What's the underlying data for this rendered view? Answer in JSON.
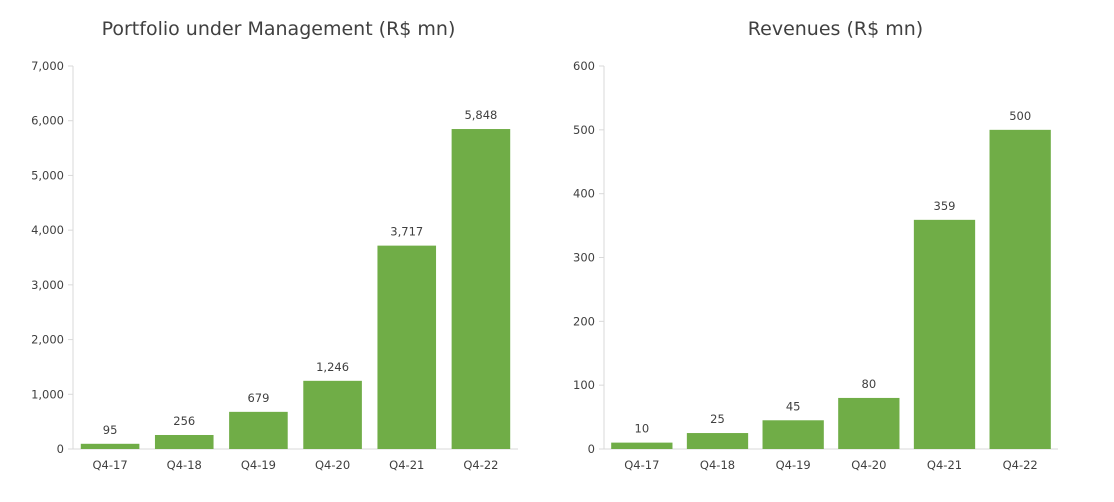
{
  "chart_data": [
    {
      "type": "bar",
      "title": "Portfolio under Management (R$ mn)",
      "categories": [
        "Q4-17",
        "Q4-18",
        "Q4-19",
        "Q4-20",
        "Q4-21",
        "Q4-22"
      ],
      "values": [
        95,
        256,
        679,
        1246,
        3717,
        5848
      ],
      "value_labels": [
        "95",
        "256",
        "679",
        "1,246",
        "3,717",
        "5,848"
      ],
      "ylim": [
        0,
        7000
      ],
      "yticks": [
        0,
        1000,
        2000,
        3000,
        4000,
        5000,
        6000,
        7000
      ],
      "ytick_labels": [
        "0",
        "1,000",
        "2,000",
        "3,000",
        "4,000",
        "5,000",
        "6,000",
        "7,000"
      ],
      "bar_color": "#70AD47",
      "grid": false,
      "xlabel": "",
      "ylabel": ""
    },
    {
      "type": "bar",
      "title": "Revenues (R$ mn)",
      "categories": [
        "Q4-17",
        "Q4-18",
        "Q4-19",
        "Q4-20",
        "Q4-21",
        "Q4-22"
      ],
      "values": [
        10,
        25,
        45,
        80,
        359,
        500
      ],
      "value_labels": [
        "10",
        "25",
        "45",
        "80",
        "359",
        "500"
      ],
      "ylim": [
        0,
        600
      ],
      "yticks": [
        0,
        100,
        200,
        300,
        400,
        500,
        600
      ],
      "ytick_labels": [
        "0",
        "100",
        "200",
        "300",
        "400",
        "500",
        "600"
      ],
      "bar_color": "#70AD47",
      "grid": false,
      "xlabel": "",
      "ylabel": ""
    }
  ]
}
